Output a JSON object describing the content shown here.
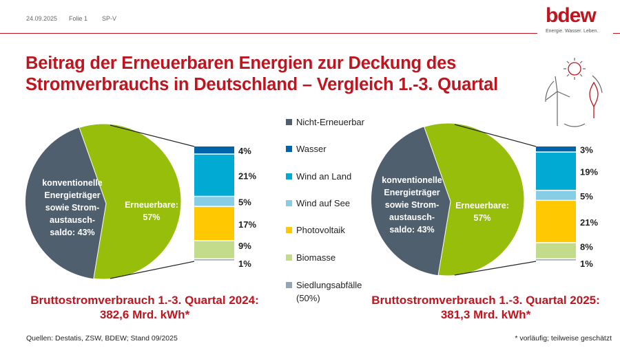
{
  "header": {
    "date": "24.09.2025",
    "slide": "Folie 1",
    "dept": "SP-V"
  },
  "logo": {
    "text": "bdew",
    "tagline": "Energie. Wasser. Leben."
  },
  "title_line1": "Beitrag der Erneuerbaren Energien zur Deckung des",
  "title_line2": "Stromverbrauchs in Deutschland – Vergleich 1.-3. Quartal",
  "colors": {
    "accent": "#c0141e",
    "nicht_erneuerbar": "#505f6e",
    "erneuerbar": "#96be0a",
    "wasser": "#0064aa",
    "wind_land": "#00aad2",
    "wind_see": "#87cde6",
    "pv": "#ffc800",
    "biomasse": "#c3dc8c",
    "siedlung": "#96a5b4"
  },
  "legend": [
    "Nicht-Erneuerbar",
    "Wasser",
    "Wind an Land",
    "Wind auf See",
    "Photovoltaik",
    "Biomasse",
    "Siedlungsabfälle (50%)"
  ],
  "chart_data": [
    {
      "type": "pie",
      "year": "2024",
      "slices": [
        {
          "label": "konventionelle Energieträger sowie Strom-austausch-saldo: 43%",
          "value": 43
        },
        {
          "label": "Erneuerbare: 57%",
          "value": 57
        }
      ],
      "breakdown": {
        "type": "bar",
        "stacked": true,
        "categories": [
          "Wasser",
          "Wind an Land",
          "Wind auf See",
          "Photovoltaik",
          "Biomasse",
          "Siedlungsabfälle (50%)"
        ],
        "values": [
          4,
          21,
          5,
          17,
          9,
          1
        ],
        "labels": [
          "4%",
          "21%",
          "5%",
          "17%",
          "9%",
          "1%"
        ]
      },
      "caption_line1": "Bruttostromverbrauch 1.-3. Quartal 2024:",
      "caption_line2": "382,6 Mrd. kWh*"
    },
    {
      "type": "pie",
      "year": "2025",
      "slices": [
        {
          "label": "konventionelle Energieträger sowie Strom-austausch-saldo: 43%",
          "value": 43
        },
        {
          "label": "Erneuerbare: 57%",
          "value": 57
        }
      ],
      "breakdown": {
        "type": "bar",
        "stacked": true,
        "categories": [
          "Wasser",
          "Wind an Land",
          "Wind auf See",
          "Photovoltaik",
          "Biomasse",
          "Siedlungsabfälle (50%)"
        ],
        "values": [
          3,
          19,
          5,
          21,
          8,
          1
        ],
        "labels": [
          "3%",
          "19%",
          "5%",
          "21%",
          "8%",
          "1%"
        ]
      },
      "caption_line1": "Bruttostromverbrauch 1.-3. Quartal 2025:",
      "caption_line2": "381,3 Mrd. kWh*"
    }
  ],
  "pie_text": {
    "conv": [
      "konventionelle",
      "Energieträger",
      "sowie Strom-",
      "austausch-",
      "saldo: 43%"
    ],
    "ren": [
      "Erneuerbare:",
      "57%"
    ]
  },
  "footer": {
    "sources": "Quellen: Destatis, ZSW, BDEW; Stand 09/2025",
    "note": "* vorläufig; teilweise geschätzt"
  }
}
